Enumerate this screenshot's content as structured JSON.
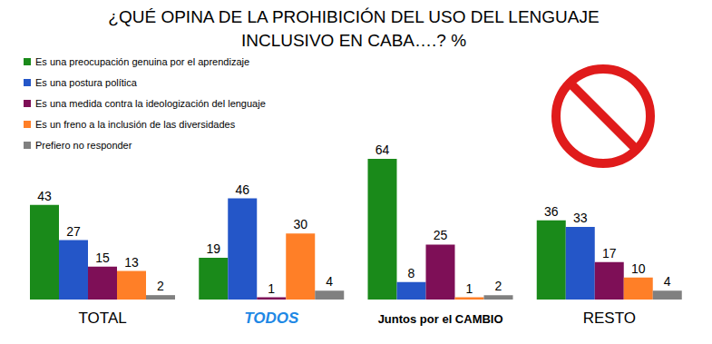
{
  "chart_data": {
    "type": "bar",
    "title": "¿QUÉ OPINA DE LA PROHIBICIÓN DEL USO DEL LENGUAJE INCLUSIVO EN CABA….? %",
    "categories": [
      "TOTAL",
      "TODOS",
      "Juntos por el CAMBIO",
      "RESTO"
    ],
    "series": [
      {
        "name": "Es una preocupación genuina por el aprendizaje",
        "color": "#1a8a1a",
        "values": [
          43,
          19,
          64,
          36
        ]
      },
      {
        "name": "Es una postura política",
        "color": "#2456c8",
        "values": [
          27,
          46,
          8,
          33
        ]
      },
      {
        "name": "Es una medida contra la ideologización del lenguaje",
        "color": "#7e0f57",
        "values": [
          15,
          1,
          25,
          17
        ]
      },
      {
        "name": "Es un freno a la inclusión de las diversidades",
        "color": "#ff7f27",
        "values": [
          13,
          30,
          1,
          10
        ]
      },
      {
        "name": "Prefiero no responder",
        "color": "#808080",
        "values": [
          2,
          4,
          2,
          4
        ]
      }
    ],
    "ylim": [
      0,
      64
    ],
    "tick_labels": "x",
    "data_labels": true,
    "legend": "upper left",
    "grid": false
  }
}
